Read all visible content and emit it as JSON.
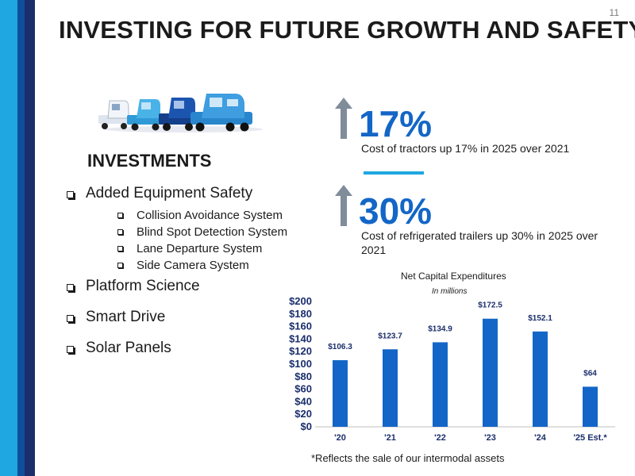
{
  "slide": {
    "title": "INVESTING FOR FUTURE GROWTH AND SAFETY",
    "page_number": "11"
  },
  "colors": {
    "accent_blue": "#1366c7",
    "light_blue": "#1ea7e1",
    "navy": "#1a2e6c",
    "arrow_gray": "#7f8c9a"
  },
  "investments": {
    "heading": "INVESTMENTS",
    "items": [
      {
        "label": "Added Equipment Safety",
        "subitems": [
          "Collision Avoidance System",
          "Blind Spot Detection System",
          "Lane Departure System",
          "Side Camera System"
        ]
      },
      {
        "label": "Platform Science"
      },
      {
        "label": "Smart Drive"
      },
      {
        "label": "Solar Panels"
      }
    ]
  },
  "stats": [
    {
      "value": "17%",
      "description": "Cost of tractors up 17% in 2025 over 2021",
      "icon": "up-arrow-icon"
    },
    {
      "value": "30%",
      "description": "Cost of refrigerated trailers up 30% in 2025 over 2021",
      "icon": "up-arrow-icon"
    }
  ],
  "chart_data": {
    "type": "bar",
    "title": "Net Capital Expenditures",
    "subtitle": "In millions",
    "categories": [
      "'20",
      "'21",
      "'22",
      "'23",
      "'24",
      "'25 Est.*"
    ],
    "values": [
      106.3,
      123.7,
      134.9,
      172.5,
      152.1,
      64
    ],
    "data_labels": [
      "$106.3",
      "$123.7",
      "$134.9",
      "$172.5",
      "$152.1",
      "$64"
    ],
    "y_ticks": [
      0,
      20,
      40,
      60,
      80,
      100,
      120,
      140,
      160,
      180,
      200
    ],
    "y_tick_labels": [
      "$0",
      "$20",
      "$40",
      "$60",
      "$80",
      "$100",
      "$120",
      "$140",
      "$160",
      "$180",
      "$200"
    ],
    "ylim": [
      0,
      200
    ],
    "xlabel": "",
    "ylabel": "",
    "grid": false,
    "bar_color": "#1366c7"
  },
  "footnote": "*Reflects the sale of our intermodal assets"
}
